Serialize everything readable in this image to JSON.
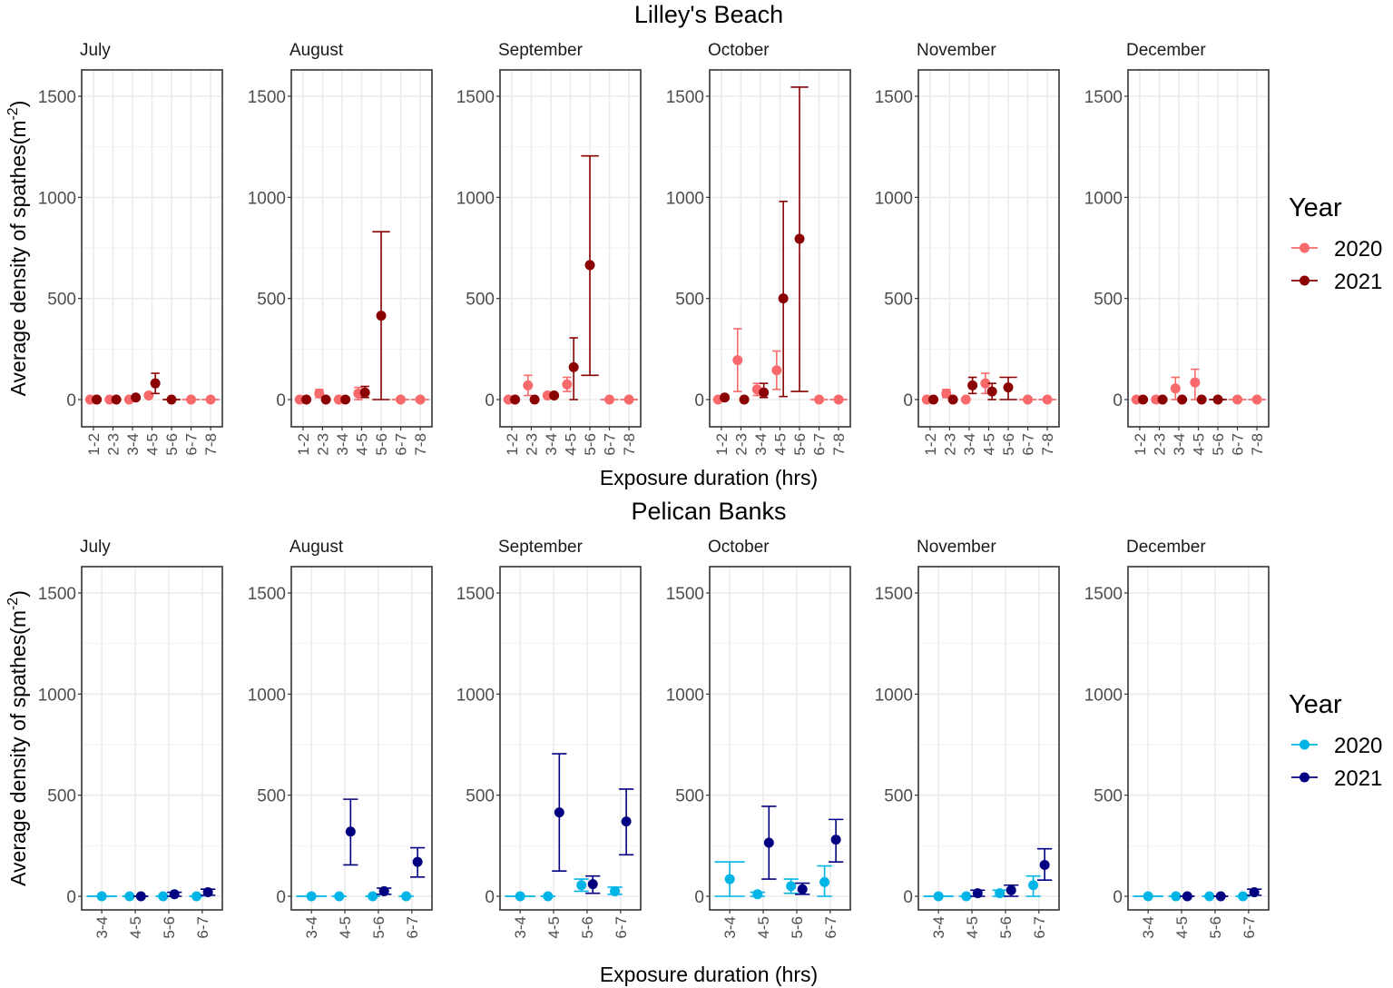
{
  "chart_data": [
    {
      "type": "scatter",
      "title": "Lilley's Beach",
      "xlabel": "Exposure duration (hrs)",
      "ylabel_main": "Average density of spathes(m",
      "ylabel_sup": "-2",
      "ylabel_end": ")",
      "categories": [
        "1-2",
        "2-3",
        "3-4",
        "4-5",
        "5-6",
        "6-7",
        "7-8"
      ],
      "ylim": [
        -135,
        1630
      ],
      "yticks": [
        0,
        500,
        1000,
        1500
      ],
      "grid": true,
      "legend": {
        "title": "Year",
        "placement": "right",
        "entries": [
          "2020",
          "2021"
        ]
      },
      "colors": {
        "2020": "#F8696B",
        "2021": "#8B0000"
      },
      "panels": [
        {
          "title": "July",
          "series": [
            {
              "name": "2020",
              "values": [
                0,
                0,
                0,
                20,
                null,
                0,
                0
              ],
              "lower": [
                0,
                0,
                0,
                15,
                null,
                0,
                0
              ],
              "upper": [
                0,
                0,
                0,
                25,
                null,
                0,
                0
              ]
            },
            {
              "name": "2021",
              "values": [
                0,
                0,
                10,
                80,
                0,
                null,
                null
              ],
              "lower": [
                0,
                0,
                5,
                30,
                0,
                null,
                null
              ],
              "upper": [
                0,
                0,
                15,
                130,
                0,
                null,
                null
              ]
            }
          ]
        },
        {
          "title": "August",
          "series": [
            {
              "name": "2020",
              "values": [
                0,
                30,
                0,
                30,
                null,
                0,
                0
              ],
              "lower": [
                0,
                10,
                0,
                0,
                null,
                0,
                0
              ],
              "upper": [
                0,
                50,
                0,
                60,
                null,
                0,
                0
              ]
            },
            {
              "name": "2021",
              "values": [
                0,
                0,
                0,
                35,
                415,
                null,
                null
              ],
              "lower": [
                0,
                0,
                0,
                10,
                0,
                null,
                null
              ],
              "upper": [
                0,
                0,
                0,
                65,
                830,
                null,
                null
              ]
            }
          ]
        },
        {
          "title": "September",
          "series": [
            {
              "name": "2020",
              "values": [
                0,
                70,
                20,
                75,
                null,
                0,
                0
              ],
              "lower": [
                0,
                20,
                10,
                40,
                null,
                0,
                0
              ],
              "upper": [
                0,
                120,
                30,
                110,
                null,
                0,
                0
              ]
            },
            {
              "name": "2021",
              "values": [
                0,
                0,
                20,
                160,
                665,
                null,
                null
              ],
              "lower": [
                0,
                0,
                10,
                0,
                120,
                null,
                null
              ],
              "upper": [
                0,
                0,
                30,
                305,
                1205,
                null,
                null
              ]
            }
          ]
        },
        {
          "title": "October",
          "series": [
            {
              "name": "2020",
              "values": [
                0,
                195,
                50,
                145,
                null,
                0,
                0
              ],
              "lower": [
                0,
                40,
                20,
                50,
                null,
                0,
                0
              ],
              "upper": [
                0,
                350,
                80,
                240,
                null,
                0,
                0
              ]
            },
            {
              "name": "2021",
              "values": [
                10,
                0,
                35,
                500,
                795,
                null,
                null
              ],
              "lower": [
                0,
                0,
                10,
                15,
                40,
                null,
                null
              ],
              "upper": [
                20,
                0,
                80,
                980,
                1545,
                null,
                null
              ]
            }
          ]
        },
        {
          "title": "November",
          "series": [
            {
              "name": "2020",
              "values": [
                0,
                30,
                0,
                80,
                null,
                0,
                0
              ],
              "lower": [
                0,
                10,
                0,
                30,
                null,
                0,
                0
              ],
              "upper": [
                0,
                50,
                0,
                130,
                null,
                0,
                0
              ]
            },
            {
              "name": "2021",
              "values": [
                0,
                0,
                70,
                40,
                60,
                null,
                null
              ],
              "lower": [
                0,
                0,
                30,
                0,
                0,
                null,
                null
              ],
              "upper": [
                0,
                0,
                110,
                80,
                110,
                null,
                null
              ]
            }
          ]
        },
        {
          "title": "December",
          "series": [
            {
              "name": "2020",
              "values": [
                0,
                0,
                55,
                85,
                null,
                0,
                0
              ],
              "lower": [
                0,
                0,
                0,
                0,
                null,
                0,
                0
              ],
              "upper": [
                0,
                0,
                110,
                150,
                null,
                0,
                0
              ]
            },
            {
              "name": "2021",
              "values": [
                0,
                0,
                0,
                0,
                0,
                null,
                null
              ],
              "lower": [
                0,
                0,
                0,
                0,
                0,
                null,
                null
              ],
              "upper": [
                0,
                0,
                0,
                0,
                0,
                null,
                null
              ]
            }
          ]
        }
      ]
    },
    {
      "type": "scatter",
      "title": "Pelican Banks",
      "xlabel": "Exposure duration (hrs)",
      "ylabel_main": "Average density of spathes(m",
      "ylabel_sup": "-2",
      "ylabel_end": ")",
      "categories": [
        "3-4",
        "4-5",
        "5-6",
        "6-7"
      ],
      "ylim": [
        -135,
        1630
      ],
      "yticks": [
        0,
        500,
        1000,
        1500
      ],
      "grid": true,
      "legend": {
        "title": "Year",
        "placement": "right",
        "entries": [
          "2020",
          "2021"
        ]
      },
      "colors": {
        "2020": "#00B4E6",
        "2021": "#000080"
      },
      "panels": [
        {
          "title": "July",
          "series": [
            {
              "name": "2020",
              "values": [
                0,
                0,
                0,
                0
              ],
              "lower": [
                0,
                0,
                0,
                0
              ],
              "upper": [
                0,
                0,
                0,
                0
              ]
            },
            {
              "name": "2021",
              "values": [
                null,
                0,
                10,
                20
              ],
              "lower": [
                null,
                0,
                0,
                5
              ],
              "upper": [
                null,
                0,
                20,
                35
              ]
            }
          ]
        },
        {
          "title": "August",
          "series": [
            {
              "name": "2020",
              "values": [
                0,
                0,
                0,
                0
              ],
              "lower": [
                0,
                0,
                0,
                0
              ],
              "upper": [
                0,
                0,
                0,
                0
              ]
            },
            {
              "name": "2021",
              "values": [
                null,
                320,
                25,
                170
              ],
              "lower": [
                null,
                155,
                10,
                95
              ],
              "upper": [
                null,
                480,
                40,
                240
              ]
            }
          ]
        },
        {
          "title": "September",
          "series": [
            {
              "name": "2020",
              "values": [
                0,
                0,
                55,
                25
              ],
              "lower": [
                0,
                0,
                25,
                10
              ],
              "upper": [
                0,
                0,
                85,
                45
              ]
            },
            {
              "name": "2021",
              "values": [
                null,
                415,
                60,
                370
              ],
              "lower": [
                null,
                125,
                15,
                205
              ],
              "upper": [
                null,
                705,
                100,
                530
              ]
            }
          ]
        },
        {
          "title": "October",
          "series": [
            {
              "name": "2020",
              "values": [
                85,
                10,
                50,
                70
              ],
              "lower": [
                0,
                0,
                15,
                0
              ],
              "upper": [
                170,
                20,
                85,
                150
              ]
            },
            {
              "name": "2021",
              "values": [
                null,
                265,
                35,
                280
              ],
              "lower": [
                null,
                85,
                10,
                170
              ],
              "upper": [
                null,
                445,
                65,
                380
              ]
            }
          ]
        },
        {
          "title": "November",
          "series": [
            {
              "name": "2020",
              "values": [
                0,
                0,
                15,
                55
              ],
              "lower": [
                0,
                0,
                0,
                0
              ],
              "upper": [
                0,
                0,
                30,
                100
              ]
            },
            {
              "name": "2021",
              "values": [
                null,
                15,
                30,
                155
              ],
              "lower": [
                null,
                0,
                0,
                80
              ],
              "upper": [
                null,
                30,
                55,
                235
              ]
            }
          ]
        },
        {
          "title": "December",
          "series": [
            {
              "name": "2020",
              "values": [
                0,
                0,
                0,
                0
              ],
              "lower": [
                0,
                0,
                0,
                0
              ],
              "upper": [
                0,
                0,
                0,
                0
              ]
            },
            {
              "name": "2021",
              "values": [
                null,
                0,
                0,
                20
              ],
              "lower": [
                null,
                0,
                0,
                5
              ],
              "upper": [
                null,
                0,
                0,
                35
              ]
            }
          ]
        }
      ]
    }
  ]
}
